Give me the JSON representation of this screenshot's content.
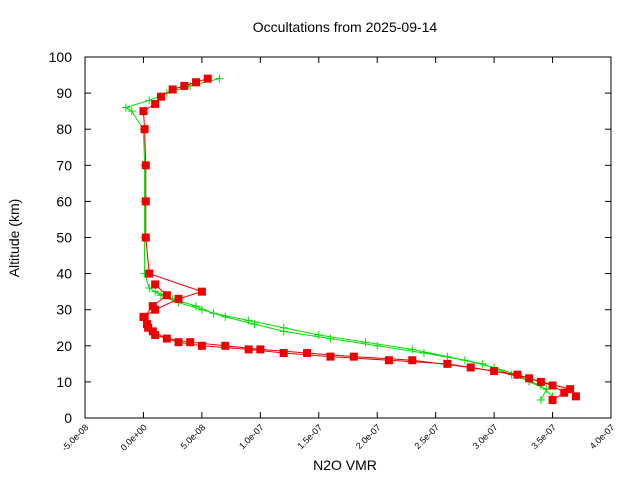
{
  "chart_data": {
    "type": "scatter",
    "title": "Occultations from 2025-09-14",
    "xlabel": "N2O VMR",
    "ylabel": "Altitude (km)",
    "xlim": [
      -5e-08,
      4e-07
    ],
    "ylim": [
      0,
      100
    ],
    "xticks": [
      "-5.0e-08",
      "0.0e+00",
      "5.0e-08",
      "1.0e-07",
      "1.5e-07",
      "2.0e-07",
      "2.5e-07",
      "3.0e-07",
      "3.5e-07",
      "4.0e-07"
    ],
    "xtick_values": [
      -5e-08,
      0,
      5e-08,
      1e-07,
      1.5e-07,
      2e-07,
      2.5e-07,
      3e-07,
      3.5e-07,
      4e-07
    ],
    "yticks": [
      "0",
      "10",
      "20",
      "30",
      "40",
      "50",
      "60",
      "70",
      "80",
      "90",
      "100"
    ],
    "ytick_values": [
      0,
      10,
      20,
      30,
      40,
      50,
      60,
      70,
      80,
      90,
      100
    ],
    "grid": false,
    "series": [
      {
        "name": "green-profiles",
        "color": "#00dd00",
        "marker": "plus",
        "profiles": [
          {
            "altitude": [
              5,
              8,
              10,
              12,
              14,
              16,
              18,
              20,
              22,
              24,
              26,
              28,
              30,
              32,
              34,
              36,
              40,
              50,
              60,
              70,
              80,
              85,
              86,
              88,
              90,
              92,
              94
            ],
            "vmr": [
              3.4e-07,
              3.45e-07,
              3.3e-07,
              3.2e-07,
              3e-07,
              2.75e-07,
              2.4e-07,
              2e-07,
              1.6e-07,
              1.2e-07,
              9.5e-08,
              7e-08,
              5e-08,
              3e-08,
              1.5e-08,
              5e-09,
              1e-09,
              1e-09,
              1e-09,
              1e-09,
              0,
              -1e-08,
              -1.5e-08,
              5e-09,
              2e-08,
              4e-08,
              6.5e-08
            ]
          },
          {
            "altitude": [
              6,
              9,
              12,
              15,
              17,
              19,
              21,
              23,
              25,
              27,
              29,
              31,
              33,
              35
            ],
            "vmr": [
              3.5e-07,
              3.4e-07,
              3.15e-07,
              2.9e-07,
              2.6e-07,
              2.3e-07,
              1.9e-07,
              1.5e-07,
              1.2e-07,
              9e-08,
              6e-08,
              4.5e-08,
              2.5e-08,
              1e-08
            ]
          }
        ]
      },
      {
        "name": "red-profiles",
        "color": "#ee0000",
        "marker": "square",
        "profiles": [
          {
            "altitude": [
              6,
              8,
              10,
              12,
              14,
              16,
              17,
              18,
              19,
              20,
              21,
              22,
              24,
              26,
              28,
              30,
              33,
              35,
              40,
              50,
              60,
              70,
              80,
              85,
              87,
              89,
              91,
              92,
              93,
              94
            ],
            "vmr": [
              3.7e-07,
              3.65e-07,
              3.4e-07,
              3.2e-07,
              2.8e-07,
              2.3e-07,
              1.8e-07,
              1.4e-07,
              1e-07,
              7e-08,
              4e-08,
              2e-08,
              8e-09,
              3e-09,
              0,
              1e-08,
              3e-08,
              5e-08,
              5e-09,
              2e-09,
              2e-09,
              2e-09,
              1e-09,
              0,
              1e-08,
              1.5e-08,
              2.5e-08,
              3.5e-08,
              4.5e-08,
              5.5e-08
            ]
          },
          {
            "altitude": [
              5,
              7,
              9,
              11,
              13,
              15,
              16,
              17,
              18,
              19,
              20,
              21,
              23,
              25,
              28,
              31,
              34,
              37
            ],
            "vmr": [
              3.5e-07,
              3.6e-07,
              3.5e-07,
              3.3e-07,
              3e-07,
              2.6e-07,
              2.1e-07,
              1.6e-07,
              1.2e-07,
              9e-08,
              5e-08,
              3e-08,
              1e-08,
              4e-09,
              1e-09,
              8e-09,
              2e-08,
              1e-08
            ]
          }
        ]
      }
    ]
  }
}
